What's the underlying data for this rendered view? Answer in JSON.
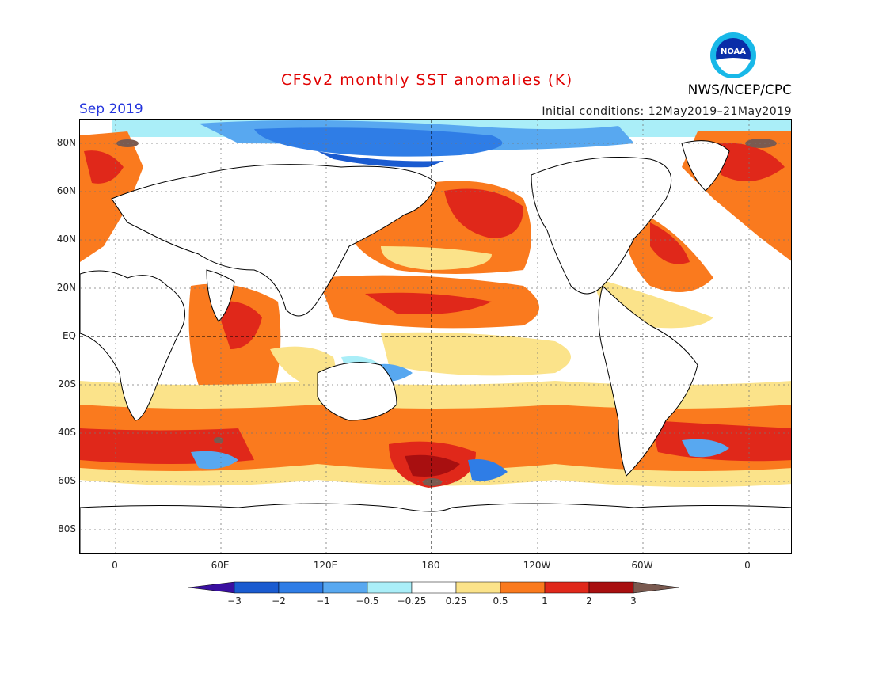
{
  "header": {
    "title": "CFSv2 monthly SST anomalies (K)",
    "month": "Sep 2019",
    "initial_conditions": "Initial conditions: 12May2019–21May2019",
    "agency": "NWS/NCEP/CPC",
    "logo_icon": "noaa-logo",
    "logo_text": "NOAA"
  },
  "map": {
    "projection": "cylindrical-equidistant",
    "lat_labels": [
      "80N",
      "60N",
      "40N",
      "20N",
      "EQ",
      "20S",
      "40S",
      "60S",
      "80S"
    ],
    "lon_labels": [
      "0",
      "60E",
      "120E",
      "180",
      "120W",
      "60W",
      "0"
    ],
    "land_color": "#ffffff",
    "coast_color": "#000000"
  },
  "colorbar": {
    "labels": [
      "−3",
      "−2",
      "−1",
      "−0.5",
      "−0.25",
      "0.25",
      "0.5",
      "1",
      "2",
      "3"
    ],
    "colors": [
      "#3a10a0",
      "#1a5bd0",
      "#2f7de6",
      "#58a8f0",
      "#aaeef8",
      "#ffffff",
      "#fbe38a",
      "#fa7a1e",
      "#e0281a",
      "#a80f10",
      "#7a5a50"
    ]
  }
}
